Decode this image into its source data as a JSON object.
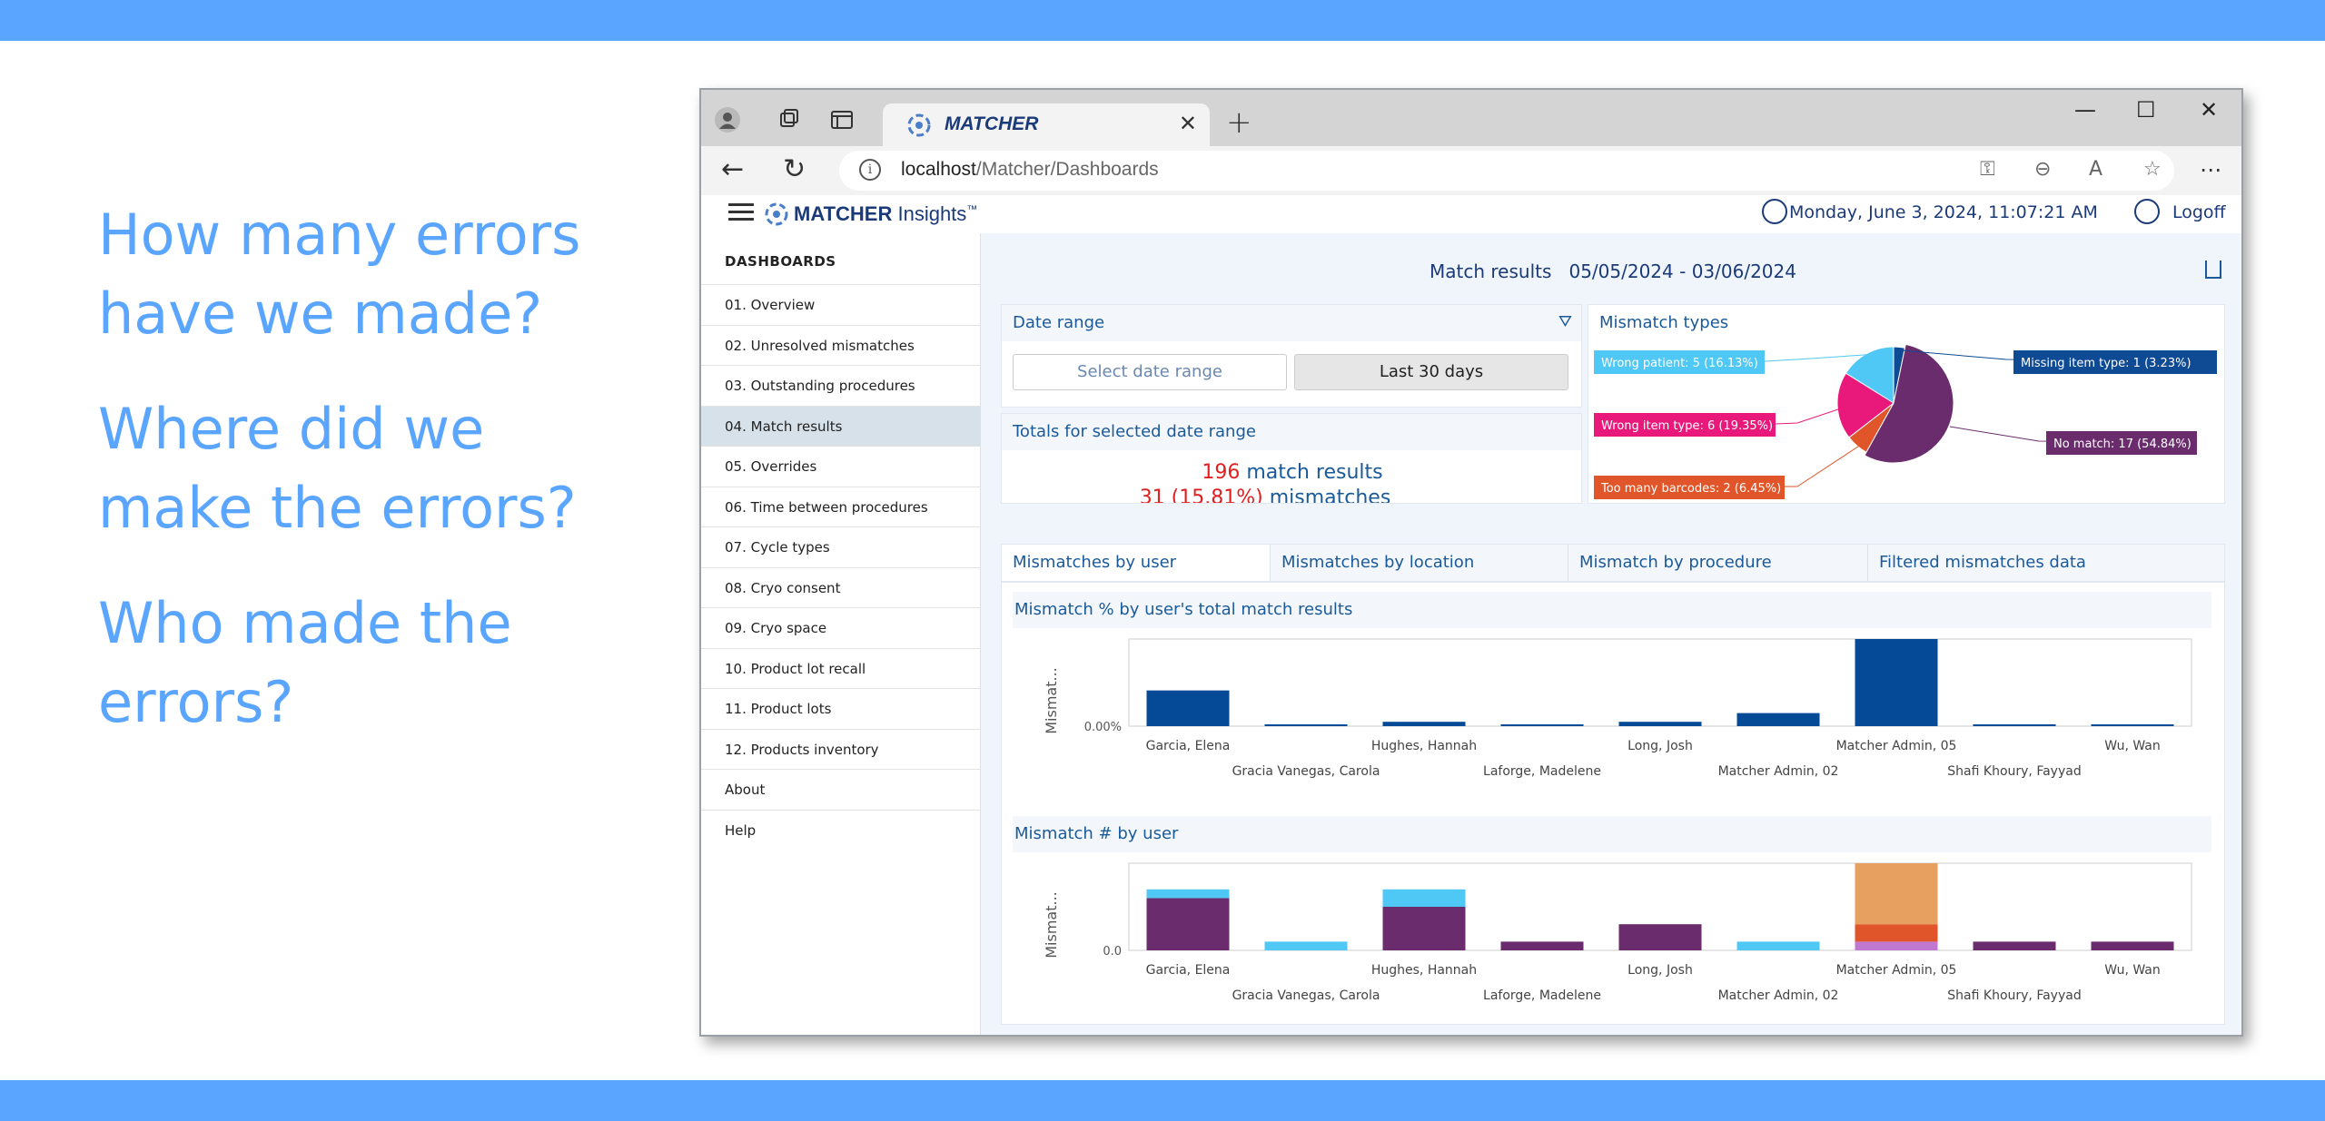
{
  "slide": {
    "questions": [
      "How many errors have we made?",
      "Where did we make the errors?",
      "Who made the errors?"
    ]
  },
  "browser": {
    "tab_title": "MATCHER",
    "url_host": "localhost",
    "url_path": "/Matcher/Dashboards"
  },
  "app": {
    "logo_bold": "MATCHER",
    "logo_rest": " Insights",
    "logo_tm": "™",
    "datetime": "Monday, June 3, 2024, 11:07:21 AM",
    "logoff": "Logoff"
  },
  "sidebar": {
    "title": "DASHBOARDS",
    "items": [
      "01. Overview",
      "02. Unresolved mismatches",
      "03. Outstanding procedures",
      "04. Match results",
      "05. Overrides",
      "06. Time between procedures",
      "07. Cycle types",
      "08. Cryo consent",
      "09. Cryo space",
      "10. Product lot recall",
      "11. Product lots",
      "12. Products inventory",
      "About",
      "Help"
    ],
    "active": "04. Match results"
  },
  "main": {
    "title": "Match results",
    "date_span": "05/05/2024 - 03/06/2024",
    "date_range": {
      "header": "Date range",
      "select_placeholder": "Select date range",
      "preset": "Last 30 days"
    },
    "totals": {
      "header": "Totals for selected date range",
      "results_count": "196",
      "results_label": " match results",
      "mismatch_count": "31 (15.81%)",
      "mismatch_label": " mismatches"
    },
    "mismatch_types": {
      "header": "Mismatch types",
      "labels": [
        "Wrong patient: 5 (16.13%)",
        "Wrong item type: 6 (19.35%)",
        "Too many barcodes: 2 (6.45%)",
        "Missing item type: 1 (3.23%)",
        "No match: 17 (54.84%)"
      ]
    },
    "tabs": [
      "Mismatches by user",
      "Mismatches by location",
      "Mismatch by procedure",
      "Filtered mismatches data"
    ],
    "chart1_title": "Mismatch % by user's total match results",
    "chart2_title": "Mismatch # by user"
  },
  "colors": {
    "band": "#5aa5ff",
    "wrong_patient": "#4fc8f5",
    "wrong_item_type": "#e8197a",
    "too_many_barcodes": "#e0562a",
    "missing_item_type": "#0f4a94",
    "no_match": "#6b2c6e",
    "bar_blue": "#044a96",
    "orange_light": "#e8a060",
    "lilac": "#c078d0"
  },
  "chart_data": [
    {
      "type": "pie",
      "title": "Mismatch types",
      "slices": [
        {
          "label": "Wrong patient",
          "value": 5,
          "pct": 16.13,
          "color": "#4fc8f5"
        },
        {
          "label": "Missing item type",
          "value": 1,
          "pct": 3.23,
          "color": "#0f4a94"
        },
        {
          "label": "No match",
          "value": 17,
          "pct": 54.84,
          "color": "#6b2c6e"
        },
        {
          "label": "Too many barcodes",
          "value": 2,
          "pct": 6.45,
          "color": "#e0562a"
        },
        {
          "label": "Wrong item type",
          "value": 6,
          "pct": 19.35,
          "color": "#e8197a"
        }
      ]
    },
    {
      "type": "bar",
      "title": "Mismatch % by user's total match results",
      "ylabel": "Mismat...",
      "ytick": "0.00%",
      "categories": [
        "Garcia, Elena",
        "Gracia Vanegas, Carola",
        "Hughes, Hannah",
        "Laforge, Madelene",
        "Long, Josh",
        "Matcher Admin, 02",
        "Matcher Admin, 05",
        "Shafi Khoury, Fayyad",
        "Wu, Wan"
      ],
      "values": [
        41,
        1,
        5,
        2,
        5,
        15,
        100,
        2,
        2
      ]
    },
    {
      "type": "bar",
      "stacked": true,
      "title": "Mismatch # by user",
      "ylabel": "Mismat...",
      "ytick": "0.0",
      "categories": [
        "Garcia, Elena",
        "Gracia Vanegas, Carola",
        "Hughes, Hannah",
        "Laforge, Madelene",
        "Long, Josh",
        "Matcher Admin, 02",
        "Matcher Admin, 05",
        "Shafi Khoury, Fayyad",
        "Wu, Wan"
      ],
      "series": [
        {
          "values": [
            0,
            0,
            0,
            0,
            0,
            0,
            1,
            0,
            0
          ],
          "color": "#c078d0"
        },
        {
          "values": [
            6,
            0,
            5,
            1,
            3,
            0,
            0,
            1,
            1
          ],
          "color": "#6b2c6e"
        },
        {
          "values": [
            0,
            0,
            0,
            0,
            0,
            0,
            2,
            0,
            0
          ],
          "color": "#e0562a"
        },
        {
          "values": [
            1,
            1,
            2,
            0,
            0,
            1,
            0,
            0,
            0
          ],
          "color": "#4fc8f5"
        },
        {
          "values": [
            0,
            0,
            0,
            0,
            0,
            0,
            7,
            0,
            0
          ],
          "color": "#e8a060"
        }
      ]
    }
  ]
}
